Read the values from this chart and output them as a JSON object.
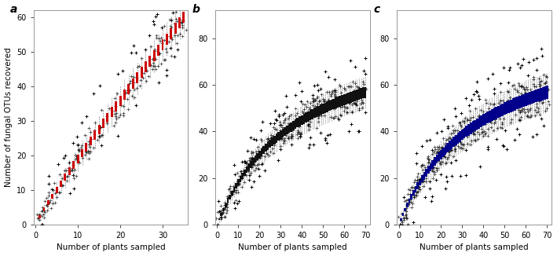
{
  "panels": [
    {
      "label": "a",
      "xlim": [
        -0.5,
        36
      ],
      "ylim": [
        0,
        62
      ],
      "xticks": [
        0,
        10,
        20,
        30
      ],
      "yticks": [
        0,
        10,
        20,
        30,
        40,
        50,
        60
      ],
      "color": "#CC0000",
      "n_x": 35,
      "x_max": 35,
      "y_max": 60,
      "y_asymptote": 60,
      "k": 0.058,
      "spread_scale": 3.5,
      "box_width": 0.55,
      "n_sims": 200,
      "outlier_prob": 0.7,
      "outlier_spread": 6.0
    },
    {
      "label": "b",
      "xlim": [
        -1,
        72
      ],
      "ylim": [
        0,
        92
      ],
      "xticks": [
        0,
        10,
        20,
        30,
        40,
        50,
        60,
        70
      ],
      "yticks": [
        0,
        20,
        40,
        60,
        80
      ],
      "color": "#111111",
      "n_x": 70,
      "x_max": 70,
      "y_max": 88,
      "y_asymptote": 88,
      "k": 0.055,
      "spread_scale": 5.0,
      "box_width": 1.0,
      "n_sims": 200,
      "outlier_prob": 0.7,
      "outlier_spread": 8.0
    },
    {
      "label": "c",
      "xlim": [
        -1,
        72
      ],
      "ylim": [
        0,
        92
      ],
      "xticks": [
        0,
        10,
        20,
        30,
        40,
        50,
        60,
        70
      ],
      "yticks": [
        0,
        20,
        40,
        60,
        80
      ],
      "color": "#00008B",
      "n_x": 70,
      "x_max": 70,
      "y_max": 88,
      "y_asymptote": 88,
      "k": 0.058,
      "spread_scale": 6.0,
      "box_width": 1.0,
      "n_sims": 200,
      "outlier_prob": 0.7,
      "outlier_spread": 9.0
    }
  ],
  "xlabel": "Number of plants sampled",
  "ylabel": "Number of fungal OTUs recovered",
  "background_color": "#ffffff"
}
